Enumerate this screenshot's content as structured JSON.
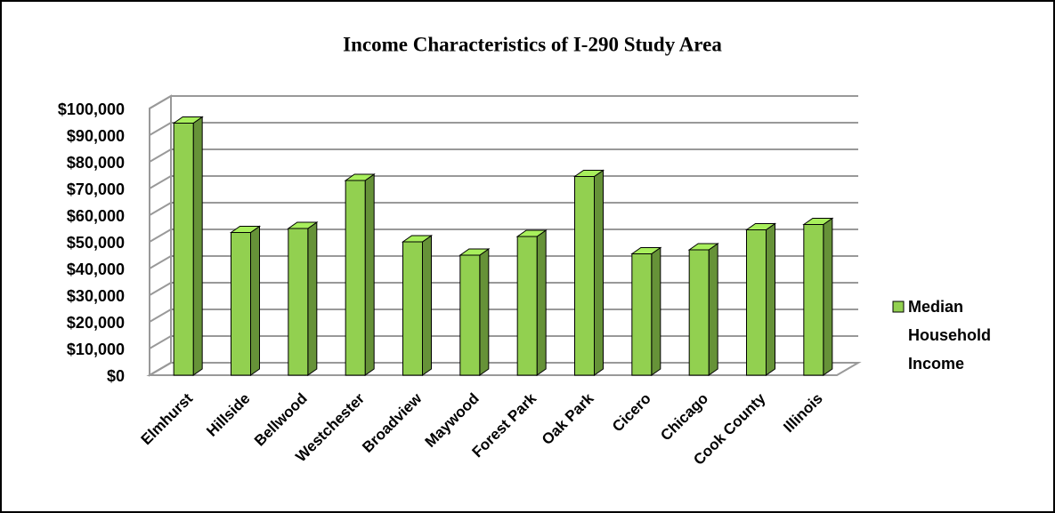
{
  "chart_data": {
    "type": "bar3d",
    "title": "Income Characteristics of I-290 Study Area",
    "categories": [
      "Elmhurst",
      "Hillside",
      "Bellwood",
      "Westchester",
      "Broadview",
      "Maywood",
      "Forest Park",
      "Oak Park",
      "Cicero",
      "Chicago",
      "Cook County",
      "Illinois"
    ],
    "series": [
      {
        "name": "Median Household Income",
        "color": "#92d050",
        "values": [
          94500,
          53500,
          55000,
          73000,
          50000,
          45000,
          52000,
          74500,
          45500,
          47000,
          54500,
          56500
        ]
      }
    ],
    "ylim": [
      0,
      100000
    ],
    "yticks": [
      {
        "value": 0,
        "label": "$0"
      },
      {
        "value": 10000,
        "label": "$10,000"
      },
      {
        "value": 20000,
        "label": "$20,000"
      },
      {
        "value": 30000,
        "label": "$30,000"
      },
      {
        "value": 40000,
        "label": "$40,000"
      },
      {
        "value": 50000,
        "label": "$50,000"
      },
      {
        "value": 60000,
        "label": "$60,000"
      },
      {
        "value": 70000,
        "label": "$70,000"
      },
      {
        "value": 80000,
        "label": "$80,000"
      },
      {
        "value": 90000,
        "label": "$90,000"
      },
      {
        "value": 100000,
        "label": "$100,000"
      }
    ],
    "grid": true,
    "legend": "right"
  }
}
